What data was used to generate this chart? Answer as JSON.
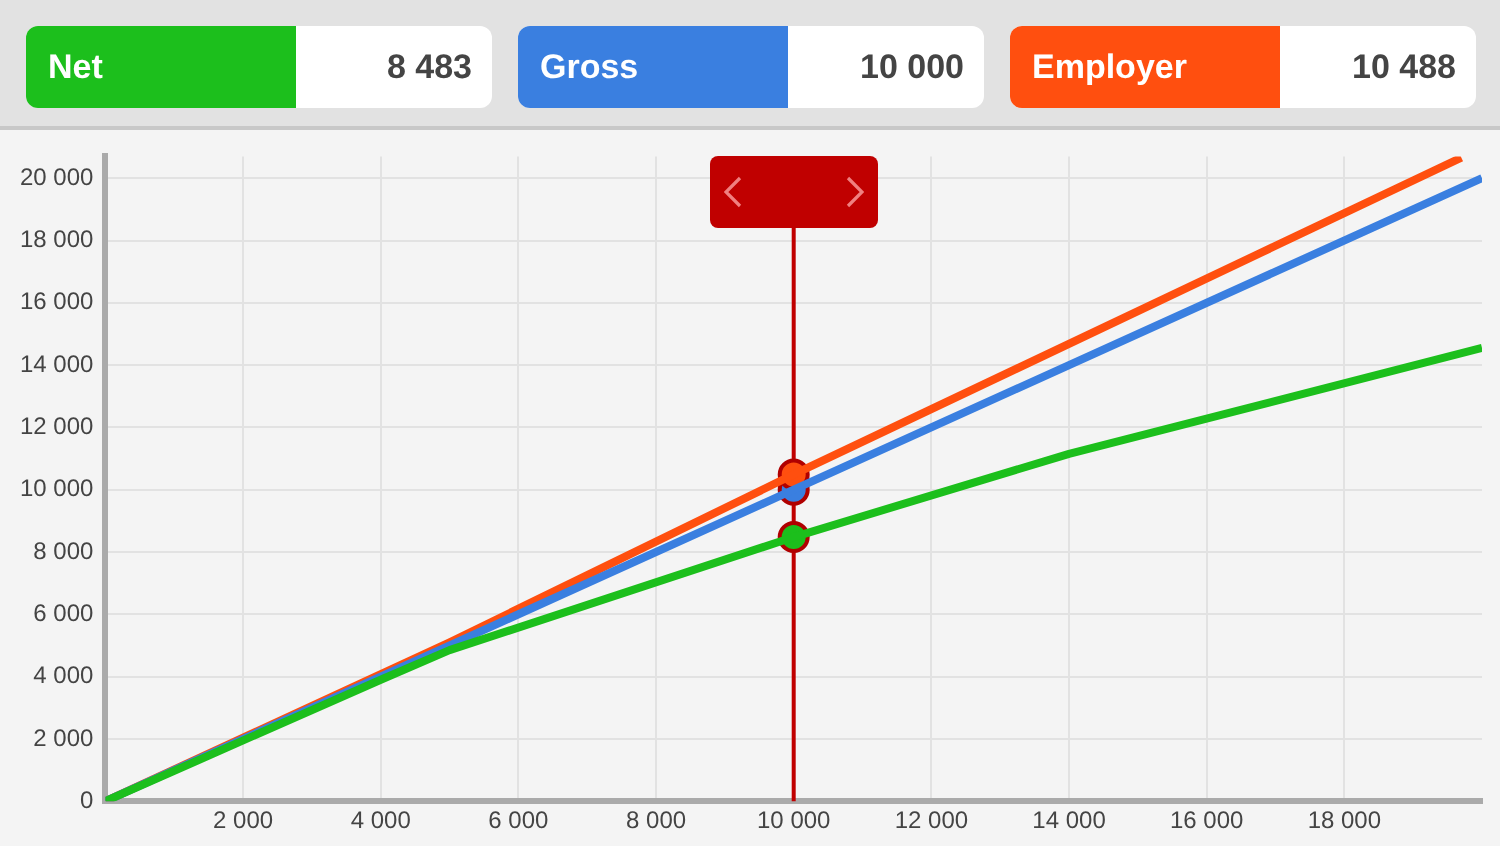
{
  "chart_data": {
    "type": "line",
    "series": [
      {
        "name": "Net",
        "color": "#1cbf1c",
        "x": [
          0,
          4000,
          5000,
          10000,
          14000,
          20000
        ],
        "values": [
          0,
          3900,
          4850,
          8480,
          11150,
          14550
        ]
      },
      {
        "name": "Gross",
        "color": "#3a7fe0",
        "x": [
          0,
          10000,
          20000
        ],
        "values": [
          0,
          10000,
          20000
        ]
      },
      {
        "name": "Employer",
        "color": "#ff4f0f",
        "x": [
          0,
          5000,
          10000,
          19700
        ],
        "values": [
          0,
          5100,
          10490,
          20660
        ]
      },
      {
        "type": "scatter",
        "marker": "circle",
        "color": "#b00000",
        "colors": [
          "#1cbf1c",
          "#3a7fe0",
          "#ff4f0f"
        ],
        "x": [
          10000,
          10000,
          10000
        ],
        "values": [
          8480,
          10000,
          10490
        ]
      }
    ],
    "annotations": [
      "8 483",
      "10 000",
      "10 488"
    ],
    "xlim": [
      0,
      20000
    ],
    "xticks": [
      {
        "value": 2000,
        "label": "2 000"
      },
      {
        "value": 4000,
        "label": "4 000"
      },
      {
        "value": 6000,
        "label": "6 000"
      },
      {
        "value": 8000,
        "label": "8 000"
      },
      {
        "value": 10000,
        "label": "10 000"
      },
      {
        "value": 12000,
        "label": "12 000"
      },
      {
        "value": 14000,
        "label": "14 000"
      },
      {
        "value": 16000,
        "label": "16 000"
      },
      {
        "value": 18000,
        "label": "18 000"
      }
    ],
    "ylim": [
      0,
      20700
    ],
    "yticks": [
      0,
      {
        "value": 2000,
        "label": "2 000"
      },
      {
        "value": 4000,
        "label": "4 000"
      },
      {
        "value": 6000,
        "label": "6 000"
      },
      {
        "value": 8000,
        "label": "8 000"
      },
      {
        "value": 10000,
        "label": "10 000"
      },
      {
        "value": 12000,
        "label": "12 000"
      },
      {
        "value": 14000,
        "label": "14 000"
      },
      {
        "value": 16000,
        "label": "16 000"
      },
      {
        "value": 18000,
        "label": "18 000"
      },
      {
        "value": 20000,
        "label": "20 000"
      }
    ],
    "ref_lines": [
      {
        "axis": "x",
        "value": 10000,
        "color": "#c00000"
      }
    ],
    "grid": true,
    "legend": "top",
    "line_style": "solid"
  }
}
